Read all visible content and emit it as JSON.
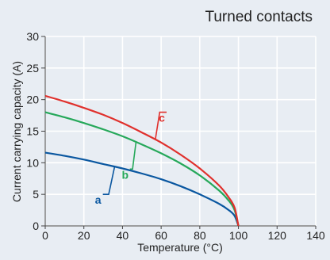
{
  "chart_data": {
    "type": "line",
    "title": "Turned contacts",
    "xlabel": "Temperature (°C)",
    "ylabel": "Current carrying capacity (A)",
    "xlim": [
      0,
      140
    ],
    "ylim": [
      0,
      30
    ],
    "xticks": [
      0,
      20,
      40,
      60,
      80,
      100,
      120,
      140
    ],
    "yticks": [
      0,
      5,
      10,
      15,
      20,
      25,
      30
    ],
    "grid": true,
    "series": [
      {
        "name": "a",
        "color": "#0a57a0",
        "x": [
          0,
          10,
          20,
          30,
          40,
          50,
          60,
          70,
          80,
          90,
          95,
          98,
          100
        ],
        "y": [
          11.6,
          11.1,
          10.5,
          9.8,
          9.1,
          8.3,
          7.4,
          6.3,
          5.0,
          3.5,
          2.5,
          1.6,
          0.0
        ]
      },
      {
        "name": "b",
        "color": "#26a85a",
        "x": [
          0,
          10,
          20,
          30,
          40,
          50,
          60,
          70,
          80,
          90,
          95,
          98,
          100
        ],
        "y": [
          18.0,
          17.2,
          16.3,
          15.3,
          14.2,
          12.9,
          11.5,
          9.9,
          8.0,
          5.6,
          4.0,
          2.5,
          0.0
        ]
      },
      {
        "name": "c",
        "color": "#e0302c",
        "x": [
          0,
          10,
          20,
          30,
          40,
          50,
          60,
          70,
          80,
          90,
          95,
          98,
          100
        ],
        "y": [
          20.6,
          19.7,
          18.7,
          17.6,
          16.3,
          14.8,
          13.2,
          11.3,
          9.1,
          6.4,
          4.5,
          2.9,
          0.0
        ]
      }
    ],
    "annotations": [
      {
        "text": "a",
        "series": "a",
        "x": 36,
        "y": 9.5,
        "label_x": 29,
        "label_y": 4.5
      },
      {
        "text": "b",
        "series": "b",
        "x": 47,
        "y": 13.3,
        "label_x": 43,
        "label_y": 8.5
      },
      {
        "text": "c",
        "series": "c",
        "x": 57,
        "y": 13.7,
        "label_x": 62,
        "label_y": 17.5
      }
    ]
  }
}
